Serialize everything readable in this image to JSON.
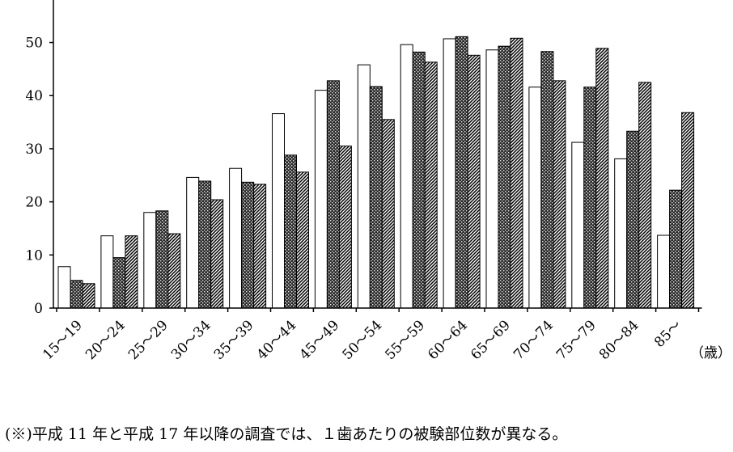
{
  "chart_data": {
    "type": "bar",
    "categories": [
      "15〜19",
      "20〜24",
      "25〜29",
      "30〜34",
      "35〜39",
      "40〜44",
      "45〜49",
      "50〜54",
      "55〜59",
      "60〜64",
      "65〜69",
      "70〜74",
      "75〜79",
      "80〜84",
      "85〜"
    ],
    "series": [
      {
        "values": [
          7.8,
          13.6,
          18.0,
          24.6,
          26.3,
          36.6,
          41.0,
          45.8,
          49.6,
          50.7,
          48.6,
          41.6,
          31.2,
          28.1,
          13.7
        ],
        "style": "white"
      },
      {
        "values": [
          5.2,
          9.5,
          18.3,
          23.9,
          23.7,
          28.8,
          42.8,
          41.7,
          48.2,
          51.1,
          49.3,
          48.3,
          41.6,
          33.3,
          22.2
        ],
        "style": "dark-dotted"
      },
      {
        "values": [
          4.6,
          13.6,
          14.0,
          20.4,
          23.3,
          25.6,
          30.5,
          35.5,
          46.3,
          47.6,
          50.8,
          42.8,
          48.9,
          42.5,
          36.8
        ],
        "style": "diagonal-hatch"
      }
    ],
    "yticks": [
      0,
      10,
      20,
      30,
      40,
      50
    ],
    "ylim": [
      0,
      58
    ],
    "x_unit_label": "（歳）",
    "grid": false
  },
  "footnote": "(※)平成 11 年と平成 17 年以降の調査では、１歯あたりの被験部位数が異なる。"
}
